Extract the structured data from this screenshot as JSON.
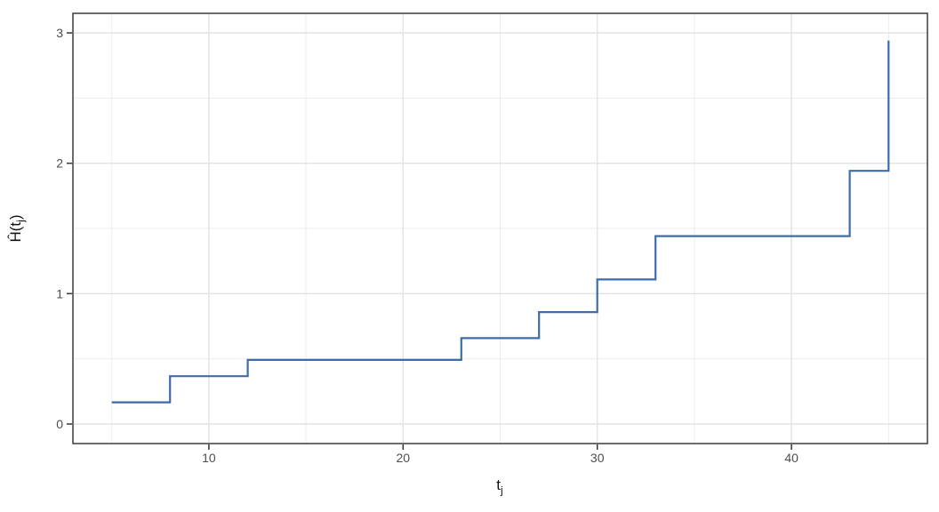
{
  "labels": {
    "x_title_main": "t",
    "x_title_sub": "j",
    "y_title_pre": "Ĥ(t",
    "y_title_sub": "j",
    "y_title_post": ")"
  },
  "chart_data": {
    "type": "line",
    "subtype": "step",
    "title": "",
    "xlabel": "t_j",
    "ylabel": "H-hat(t_j)",
    "x": [
      5,
      8,
      12,
      23,
      27,
      30,
      33,
      43,
      45
    ],
    "y": [
      0.1667,
      0.3667,
      0.4917,
      0.6583,
      0.8583,
      1.1083,
      1.4417,
      1.9417,
      2.9417
    ],
    "xlim": [
      3,
      47
    ],
    "ylim": [
      -0.15,
      3.15
    ],
    "x_ticks": [
      10,
      20,
      30,
      40
    ],
    "x_tick_labels": [
      "10",
      "20",
      "30",
      "40"
    ],
    "y_ticks": [
      0,
      1,
      2,
      3
    ],
    "y_tick_labels": [
      "0",
      "1",
      "2",
      "3"
    ],
    "x_minor_gridlines": [
      5,
      15,
      25,
      35,
      45
    ],
    "y_minor_gridlines": [
      0.5,
      1.5,
      2.5
    ],
    "grid": true,
    "legend": false,
    "line_color": "#3E6CA8",
    "major_grid_color": "#E3E3E3",
    "minor_grid_color": "#ECECEC",
    "panel_border_color": "#2E2E2E",
    "tick_color": "#333333",
    "tick_label_color": "#4D4D4D"
  }
}
